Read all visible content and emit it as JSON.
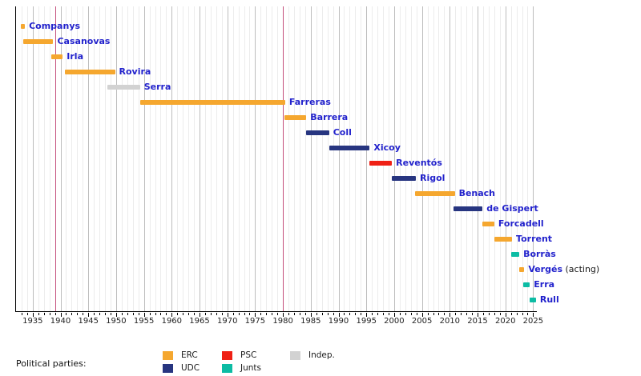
{
  "chart_data": {
    "type": "bar",
    "subtype": "timeline-gantt",
    "title": "",
    "x_axis": {
      "min": 1932,
      "max": 2025.5,
      "major_tick_start": 1935,
      "major_tick_step": 5,
      "minor_tick_step": 1,
      "tick_labels": [
        "1935",
        "1940",
        "1945",
        "1950",
        "1955",
        "1960",
        "1965",
        "1970",
        "1975",
        "1980",
        "1985",
        "1990",
        "1995",
        "2000",
        "2005",
        "2010",
        "2015",
        "2020",
        "2025"
      ],
      "grid": "on"
    },
    "event_lines": [
      {
        "year": 1939
      },
      {
        "year": 1980
      }
    ],
    "party_colors": {
      "ERC": "#F5A72F",
      "UDC": "#273580",
      "PSC": "#EF2015",
      "Junts": "#0CBCA4",
      "Indep": "#D2D2D2"
    },
    "rows": [
      {
        "name": "Companys",
        "party": "ERC",
        "start": 1932.9,
        "end": 1933.6,
        "suffix": ""
      },
      {
        "name": "Casanovas",
        "party": "ERC",
        "start": 1933.3,
        "end": 1938.7,
        "suffix": ""
      },
      {
        "name": "Irla",
        "party": "ERC",
        "start": 1938.3,
        "end": 1940.4,
        "suffix": ""
      },
      {
        "name": "Rovira",
        "party": "ERC",
        "start": 1940.8,
        "end": 1949.8,
        "suffix": ""
      },
      {
        "name": "Serra",
        "party": "Indep",
        "start": 1948.4,
        "end": 1954.3,
        "suffix": ""
      },
      {
        "name": "Farreras",
        "party": "ERC",
        "start": 1954.3,
        "end": 1980.4,
        "suffix": ""
      },
      {
        "name": "Barrera",
        "party": "ERC",
        "start": 1980.2,
        "end": 1984.2,
        "suffix": ""
      },
      {
        "name": "Coll",
        "party": "UDC",
        "start": 1984.2,
        "end": 1988.3,
        "suffix": ""
      },
      {
        "name": "Xicoy",
        "party": "UDC",
        "start": 1988.3,
        "end": 1995.6,
        "suffix": ""
      },
      {
        "name": "Reventós",
        "party": "PSC",
        "start": 1995.6,
        "end": 1999.6,
        "suffix": ""
      },
      {
        "name": "Rigol",
        "party": "UDC",
        "start": 1999.6,
        "end": 2003.9,
        "suffix": ""
      },
      {
        "name": "Benach",
        "party": "ERC",
        "start": 2003.7,
        "end": 2010.9,
        "suffix": ""
      },
      {
        "name": "de Gispert",
        "party": "UDC",
        "start": 2010.7,
        "end": 2015.9,
        "suffix": ""
      },
      {
        "name": "Forcadell",
        "party": "ERC",
        "start": 2015.9,
        "end": 2018.0,
        "suffix": ""
      },
      {
        "name": "Torrent",
        "party": "ERC",
        "start": 2018.0,
        "end": 2021.2,
        "suffix": ""
      },
      {
        "name": "Borràs",
        "party": "Junts",
        "start": 2021.0,
        "end": 2022.5,
        "suffix": ""
      },
      {
        "name": "Vergés",
        "party": "ERC",
        "start": 2022.5,
        "end": 2023.4,
        "suffix": "(acting)"
      },
      {
        "name": "Erra",
        "party": "Junts",
        "start": 2023.2,
        "end": 2024.4,
        "suffix": ""
      },
      {
        "name": "Rull",
        "party": "Junts",
        "start": 2024.4,
        "end": 2025.5,
        "suffix": ""
      }
    ]
  },
  "legend": {
    "title": "Political parties:",
    "items": [
      {
        "label": "ERC",
        "party": "ERC",
        "col": 0,
        "row": 0
      },
      {
        "label": "UDC",
        "party": "UDC",
        "col": 0,
        "row": 1
      },
      {
        "label": "PSC",
        "party": "PSC",
        "col": 1,
        "row": 0
      },
      {
        "label": "Junts",
        "party": "Junts",
        "col": 1,
        "row": 1
      },
      {
        "label": "Indep.",
        "party": "Indep",
        "col": 2,
        "row": 0
      }
    ]
  },
  "colors": {
    "background": "#FFFFFF",
    "name_text": "#2222CC",
    "suffix_text": "#1A1A1A",
    "axis_text": "#222222",
    "axis_line": "#000000",
    "grid_minor": "#ECECEC",
    "grid_major": "#BDBDBD",
    "event_line": "#C4507C"
  }
}
